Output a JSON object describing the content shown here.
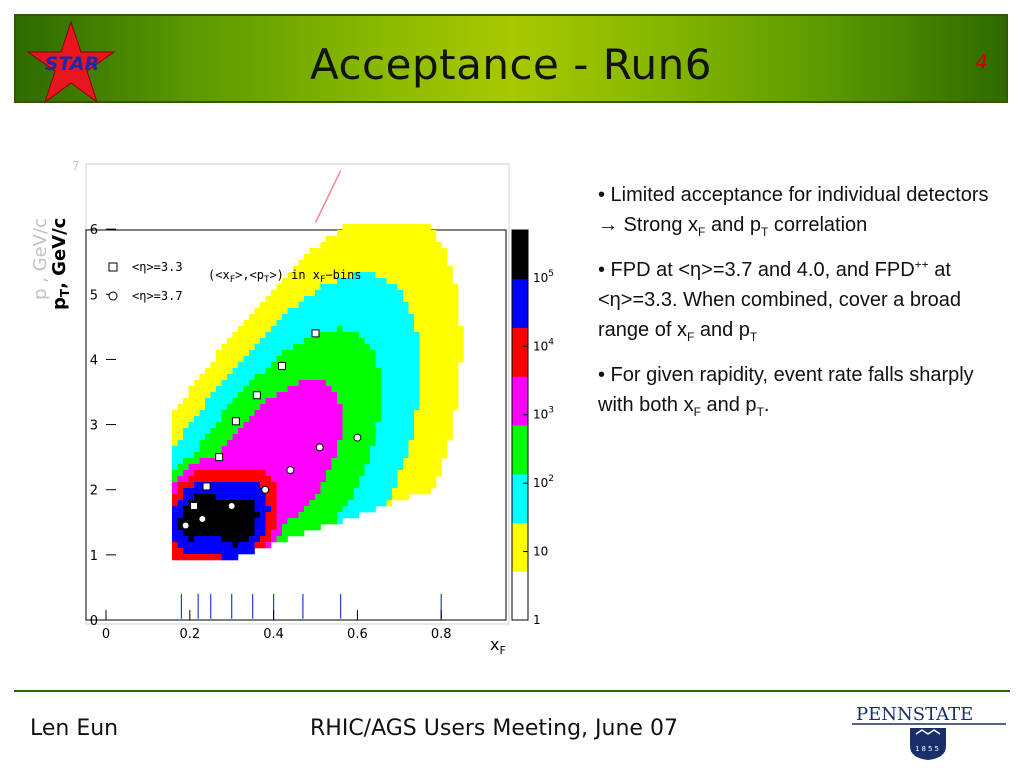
{
  "header": {
    "logo_text": "STAR",
    "title": "Acceptance - Run6",
    "page_number": "4"
  },
  "chart_data": {
    "type": "scatter",
    "subtype": "2D histogram (colz) with overlaid mean points",
    "xlabel": "x",
    "xlabel_sub": "F",
    "ylabel": "p",
    "ylabel_sub": "T",
    "ylabel_unit": ", GeV/c",
    "ghost_ylabel": "p , GeV/c",
    "ghost_ylabel_sub": "T",
    "xlim": [
      0,
      1
    ],
    "ylim": [
      0,
      7
    ],
    "x_ticks": [
      "0",
      "0.2",
      "0.4",
      "0.6",
      "0.8"
    ],
    "y_ticks": [
      "0",
      "1",
      "2",
      "3",
      "4",
      "5",
      "6",
      "7"
    ],
    "colorbar_ticks": [
      "1",
      "10",
      "10^2",
      "10^3",
      "10^4",
      "10^5"
    ],
    "colorbar_labels": [
      {
        "base": "1",
        "exp": ""
      },
      {
        "base": "10",
        "exp": ""
      },
      {
        "base": "10",
        "exp": "2"
      },
      {
        "base": "10",
        "exp": "3"
      },
      {
        "base": "10",
        "exp": "4"
      },
      {
        "base": "10",
        "exp": "5"
      }
    ],
    "colorbar_colors": [
      "#ffffff",
      "#ffff00",
      "#00ffff",
      "#00ff00",
      "#ff00ff",
      "#ff0000",
      "#0000ff",
      "#000000"
    ],
    "legend_bracket": "(<x",
    "legend": [
      {
        "marker": "square",
        "label": "<η>=3.3"
      },
      {
        "marker": "circle",
        "label": "<η>=3.7"
      }
    ],
    "legend_note_parts": [
      "(<x",
      "F",
      ">,<p",
      "T",
      ">) in x",
      "F",
      "−bins"
    ],
    "series": [
      {
        "name": "<η>=3.3",
        "marker": "square",
        "x": [
          0.21,
          0.24,
          0.27,
          0.31,
          0.36,
          0.42,
          0.5
        ],
        "y": [
          1.75,
          2.05,
          2.5,
          3.05,
          3.45,
          3.9,
          4.4
        ]
      },
      {
        "name": "<η>=3.7",
        "marker": "circle",
        "x": [
          0.19,
          0.23,
          0.3,
          0.38,
          0.44,
          0.51,
          0.6
        ],
        "y": [
          1.45,
          1.55,
          1.75,
          2.0,
          2.3,
          2.65,
          2.8
        ]
      }
    ],
    "bin_edges_x": [
      0.18,
      0.22,
      0.25,
      0.3,
      0.35,
      0.4,
      0.47,
      0.56,
      0.8
    ],
    "ghost_ylim": [
      0,
      7
    ],
    "ghost_y_ticks": [
      "7"
    ],
    "kinematic_limit_line": {
      "x": [
        0.5,
        0.56
      ],
      "y": [
        6.1,
        6.9
      ]
    }
  },
  "bullets": [
    {
      "id": "b1"
    },
    {
      "id": "b2"
    },
    {
      "id": "b3"
    }
  ],
  "bullet_text": {
    "b1_a": "• Limited acceptance for individual detectors ",
    "b1_arrow": "→",
    "b1_b": " Strong x",
    "b1_sub1": "F",
    "b1_c": " and p",
    "b1_sub2": "T",
    "b1_d": " correlation",
    "b2_a": "• FPD at <η>=3.7 and 4.0, and FPD",
    "b2_sup": "++",
    "b2_b": " at <η>=3.3. When combined, cover a broad range of x",
    "b2_sub1": "F",
    "b2_c": " and p",
    "b2_sub2": "T",
    "b3_a": "• For given rapidity, event rate falls sharply with both x",
    "b3_sub1": "F",
    "b3_b": " and p",
    "b3_sub2": "T",
    "b3_c": "."
  },
  "footer": {
    "left": "Len Eun",
    "center": "RHIC/AGS Users Meeting, June 07",
    "psu_name": "PENNSTATE",
    "psu_year": "1855"
  },
  "colors": {
    "header_green": "#8dbb00",
    "header_border": "#2f5a00",
    "star_red": "#e8141e",
    "page_number": "#cc0000",
    "footer_line": "#2a6a00",
    "psu_blue": "#1a2e6b"
  }
}
